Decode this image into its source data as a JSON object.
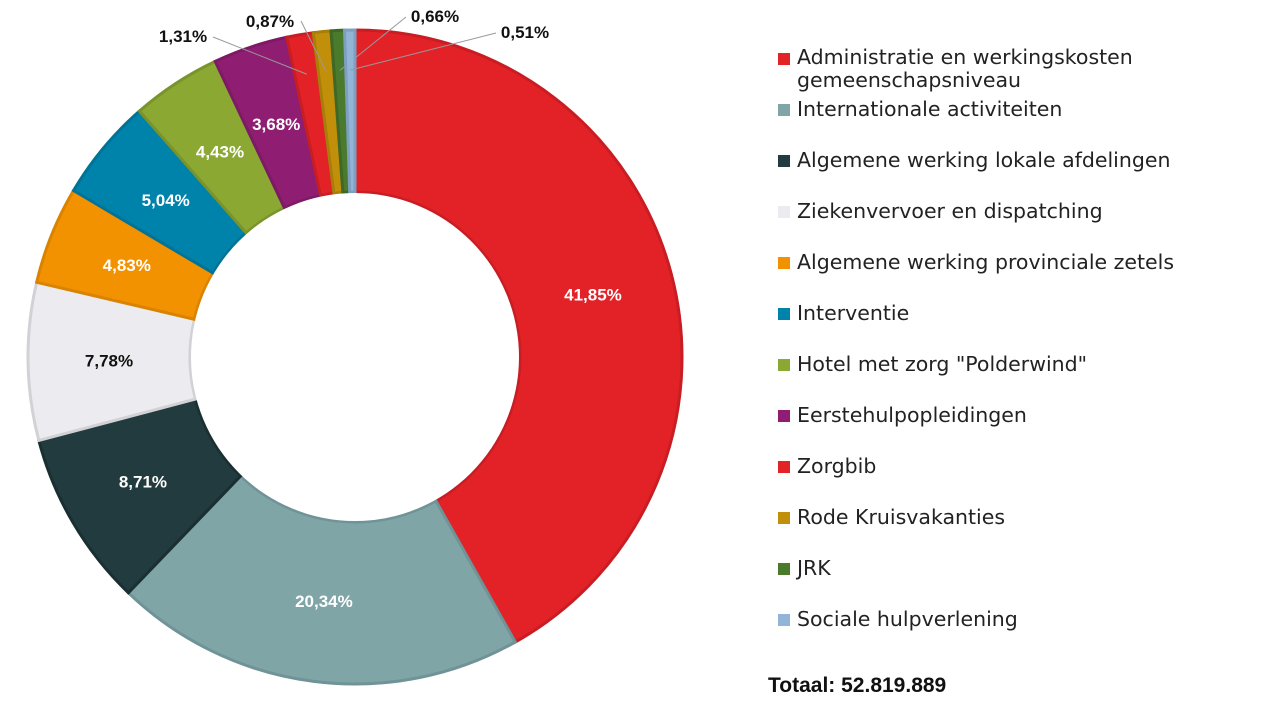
{
  "chart_data": {
    "type": "pie",
    "donut": true,
    "series": [
      {
        "name": "Administratie en werkingskosten gemeenschapsniveau",
        "value": 41.85,
        "label": "41,85%",
        "color": "#e32228",
        "border": "#c81d22",
        "label_color": "#ffffff"
      },
      {
        "name": "Internationale activiteiten",
        "value": 20.34,
        "label": "20,34%",
        "color": "#80a5a7",
        "border": "#6f9396",
        "label_color": "#ffffff"
      },
      {
        "name": "Algemene werking lokale afdelingen",
        "value": 8.71,
        "label": "8,71%",
        "color": "#223b3e",
        "border": "#1a2f31",
        "label_color": "#ffffff"
      },
      {
        "name": "Ziekenvervoer en dispatching",
        "value": 7.78,
        "label": "7,78%",
        "color": "#ececf0",
        "border": "#d2d2d6",
        "label_color": "#111111"
      },
      {
        "name": "Algemene werking provinciale zetels",
        "value": 4.83,
        "label": "4,83%",
        "color": "#f39200",
        "border": "#d98300",
        "label_color": "#ffffff"
      },
      {
        "name": "Interventie",
        "value": 5.04,
        "label": "5,04%",
        "color": "#0083ab",
        "border": "#007396",
        "label_color": "#ffffff"
      },
      {
        "name": "Hotel met zorg \"Polderwind\"",
        "value": 4.43,
        "label": "4,43%",
        "color": "#8ba832",
        "border": "#7a942b",
        "label_color": "#ffffff"
      },
      {
        "name": "Eerstehulpopleidingen",
        "value": 3.68,
        "label": "3,68%",
        "color": "#8f1e73",
        "border": "#7d1a65",
        "label_color": "#ffffff"
      },
      {
        "name": "Zorgbib",
        "value": 1.31,
        "label": "1,31%",
        "color": "#e32228",
        "border": "#c81d22",
        "label_color": "#111111"
      },
      {
        "name": "Rode Kruisvakanties",
        "value": 0.87,
        "label": "0,87%",
        "color": "#c18f0a",
        "border": "#a87d08",
        "label_color": "#111111"
      },
      {
        "name": "JRK",
        "value": 0.66,
        "label": "0,66%",
        "color": "#4a7a2c",
        "border": "#3f6826",
        "label_color": "#111111"
      },
      {
        "name": "Sociale hulpverlening",
        "value": 0.51,
        "label": "0,51%",
        "color": "#92b4d6",
        "border": "#7e9fc0",
        "label_color": "#111111"
      }
    ],
    "legend_position": "right"
  },
  "total": {
    "label": "Totaal:",
    "value": "52.819.889"
  }
}
